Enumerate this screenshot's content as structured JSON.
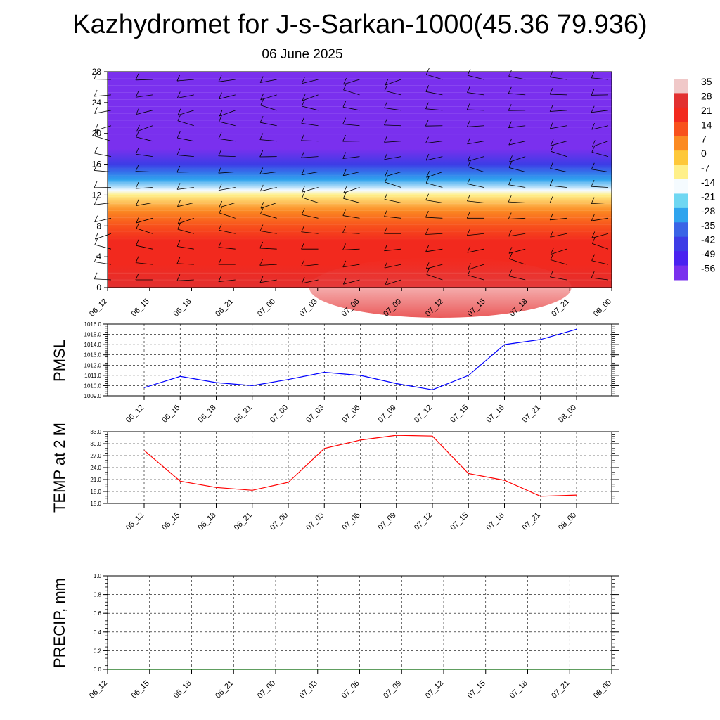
{
  "title": "Kazhydromet for J-s-Sarkan-1000(45.36 79.936)",
  "subtitle": "06 June 2025",
  "chart_data": [
    {
      "type": "heatmap",
      "xlabel": "",
      "ylabel": "",
      "x_ticks": [
        "06_12",
        "06_15",
        "06_18",
        "06_21",
        "07_00",
        "07_03",
        "07_06",
        "07_09",
        "07_12",
        "07_15",
        "07_18",
        "07_21",
        "08_00"
      ],
      "y_ticks": [
        0,
        4,
        8,
        12,
        16,
        20,
        24,
        28
      ],
      "ylim": [
        0,
        28
      ],
      "colorbar": {
        "labels": [
          "35",
          "28",
          "21",
          "14",
          "7",
          "0",
          "-7",
          "-14",
          "-21",
          "-28",
          "-35",
          "-42",
          "-49",
          "-56"
        ],
        "colors": [
          "#f0c8c8",
          "#e23030",
          "#f2291e",
          "#f8511c",
          "#fb8a22",
          "#fec83a",
          "#fff08a",
          "#f5fbff",
          "#6fd7f2",
          "#2fa4ee",
          "#3a64e6",
          "#3d3ce6",
          "#4a22f0",
          "#7a30ee"
        ]
      },
      "profile_by_level": [
        {
          "level": 0,
          "value": 30
        },
        {
          "level": 3,
          "value": 27
        },
        {
          "level": 6,
          "value": 22
        },
        {
          "level": 8,
          "value": 17
        },
        {
          "level": 10,
          "value": 8
        },
        {
          "level": 12,
          "value": -4
        },
        {
          "level": 12.6,
          "value": -12
        },
        {
          "level": 14,
          "value": -24
        },
        {
          "level": 16,
          "value": -38
        },
        {
          "level": 18,
          "value": -52
        },
        {
          "level": 20,
          "value": -60
        },
        {
          "level": 22,
          "value": -58
        },
        {
          "level": 24,
          "value": -56
        },
        {
          "level": 26,
          "value": -54
        },
        {
          "level": 28,
          "value": -52
        }
      ],
      "grid": false
    },
    {
      "type": "line",
      "ylabel": "PMSL",
      "categories": [
        "06_12",
        "06_15",
        "06_18",
        "06_21",
        "07_00",
        "07_03",
        "07_06",
        "07_09",
        "07_12",
        "07_15",
        "07_18",
        "07_21",
        "08_00"
      ],
      "y_ticks": [
        "1016.0",
        "1015.0",
        "1014.0",
        "1013.0",
        "1012.0",
        "1011.0",
        "1010.0",
        "1009.0"
      ],
      "ylim": [
        1009,
        1016
      ],
      "series": [
        {
          "color": "#0000ff",
          "values": [
            1009.8,
            1010.9,
            1010.3,
            1010.0,
            1010.6,
            1011.3,
            1011.0,
            1010.2,
            1009.6,
            1011.0,
            1014.0,
            1014.5,
            1015.5
          ]
        }
      ],
      "grid": true
    },
    {
      "type": "line",
      "ylabel": "TEMP at 2 M",
      "categories": [
        "06_12",
        "06_15",
        "06_18",
        "06_21",
        "07_00",
        "07_03",
        "07_06",
        "07_09",
        "07_12",
        "07_15",
        "07_18",
        "07_21",
        "08_00"
      ],
      "y_ticks": [
        "33.0",
        "30.0",
        "27.0",
        "24.0",
        "21.0",
        "18.0",
        "15.0"
      ],
      "ylim": [
        15,
        33
      ],
      "series": [
        {
          "color": "#ff0000",
          "values": [
            28.3,
            20.6,
            19.0,
            18.3,
            20.3,
            28.8,
            30.9,
            32.1,
            31.9,
            22.5,
            20.8,
            16.8,
            17.1
          ]
        }
      ],
      "grid": true
    },
    {
      "type": "line",
      "ylabel": "PRECIP, mm",
      "categories": [
        "06_12",
        "06_15",
        "06_18",
        "06_21",
        "07_00",
        "07_03",
        "07_06",
        "07_09",
        "07_12",
        "07_15",
        "07_18",
        "07_21",
        "08_00"
      ],
      "y_ticks": [
        "1.0",
        "0.8",
        "0.6",
        "0.4",
        "0.2",
        "0.0"
      ],
      "ylim": [
        0,
        1
      ],
      "series": [
        {
          "color": "#006400",
          "values": [
            0,
            0,
            0,
            0,
            0,
            0,
            0,
            0,
            0,
            0,
            0,
            0,
            0
          ]
        }
      ],
      "grid": true
    }
  ]
}
